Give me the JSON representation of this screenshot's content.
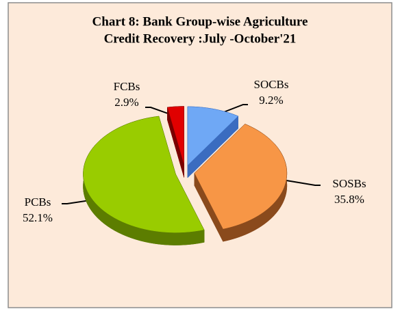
{
  "chart_data": {
    "type": "pie",
    "title": [
      "Chart 8: Bank Group-wise  Agriculture",
      "Credit  Recovery :July -October'21"
    ],
    "categories": [
      "SOCBs",
      "SOSBs",
      "PCBs",
      "FCBs"
    ],
    "values": [
      9.2,
      35.8,
      52.1,
      2.9
    ],
    "value_labels": [
      "9.2%",
      "35.8%",
      "52.1%",
      "2.9%"
    ],
    "colors": [
      "#6fa8f5",
      "#f79646",
      "#99cc00",
      "#e00000"
    ],
    "side_colors": [
      "#3a6cc0",
      "#8a4a1c",
      "#5c7d00",
      "#7a0000"
    ]
  }
}
